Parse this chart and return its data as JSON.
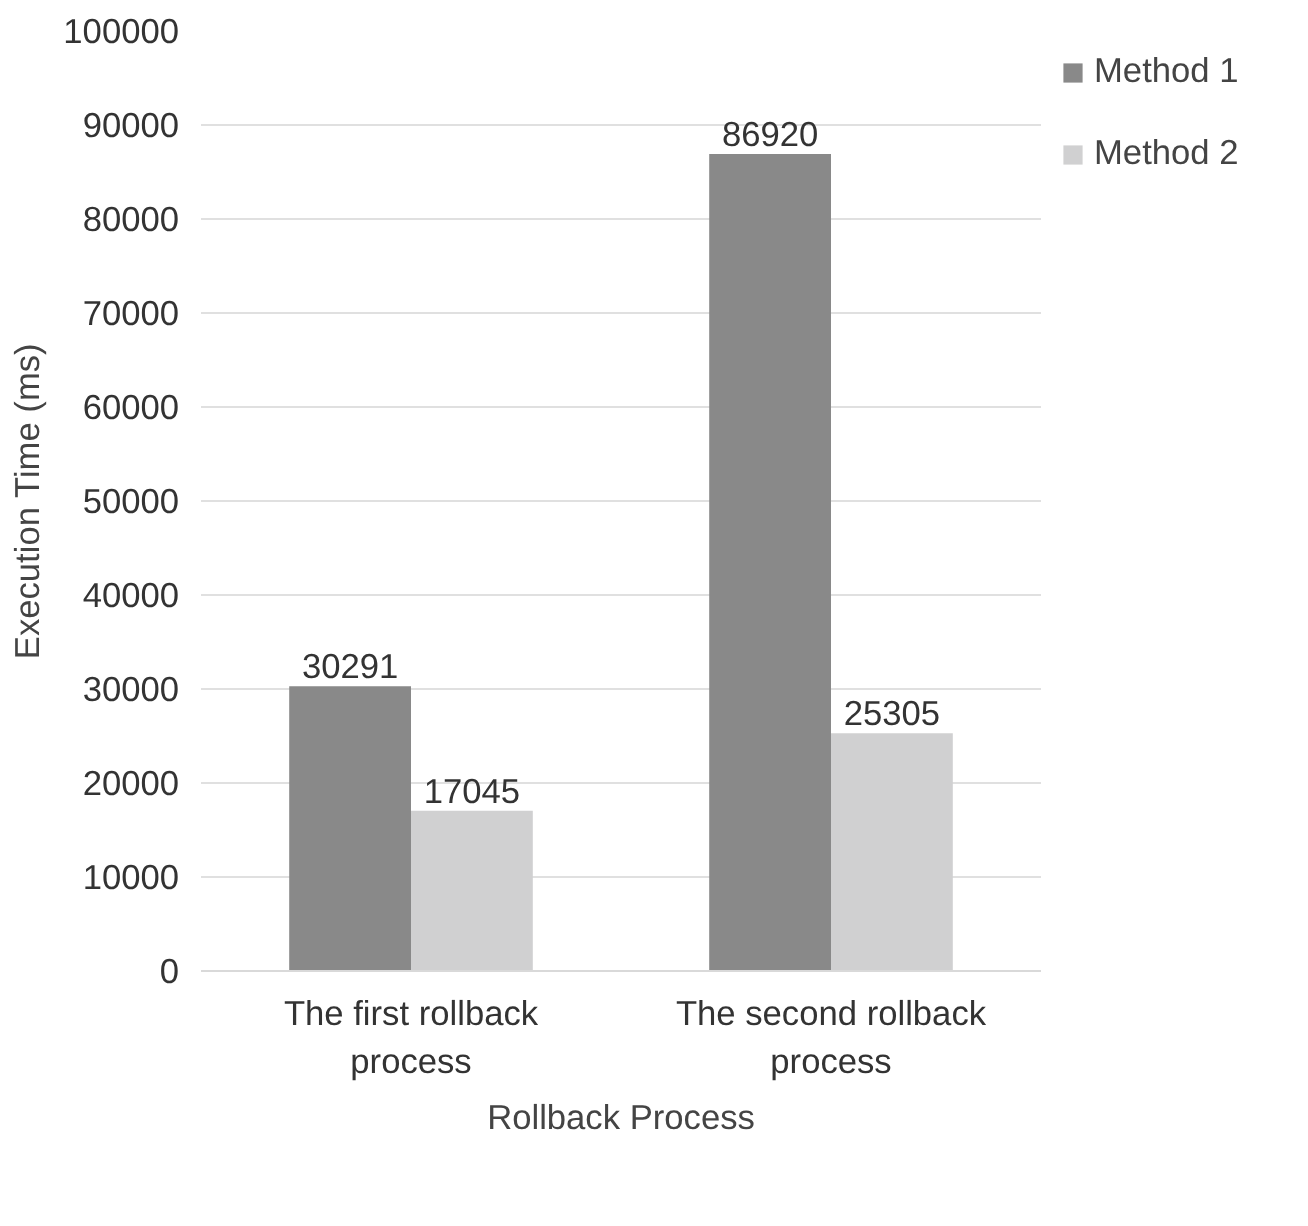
{
  "chart_data": {
    "type": "bar",
    "xlabel": "Rollback Process",
    "ylabel": "Execution Time (ms)",
    "categories": [
      "The first rollback process",
      "The second rollback process"
    ],
    "series": [
      {
        "name": "Method 1",
        "color": "#898989",
        "values": [
          30291,
          86920
        ]
      },
      {
        "name": "Method 2",
        "color": "#d0d0d1",
        "values": [
          17045,
          25305
        ]
      }
    ],
    "ylim": [
      0,
      100000
    ],
    "yticks": [
      0,
      10000,
      20000,
      30000,
      40000,
      50000,
      60000,
      70000,
      80000,
      90000,
      100000
    ],
    "grid": "y",
    "legend": "right",
    "data_labels": true
  }
}
